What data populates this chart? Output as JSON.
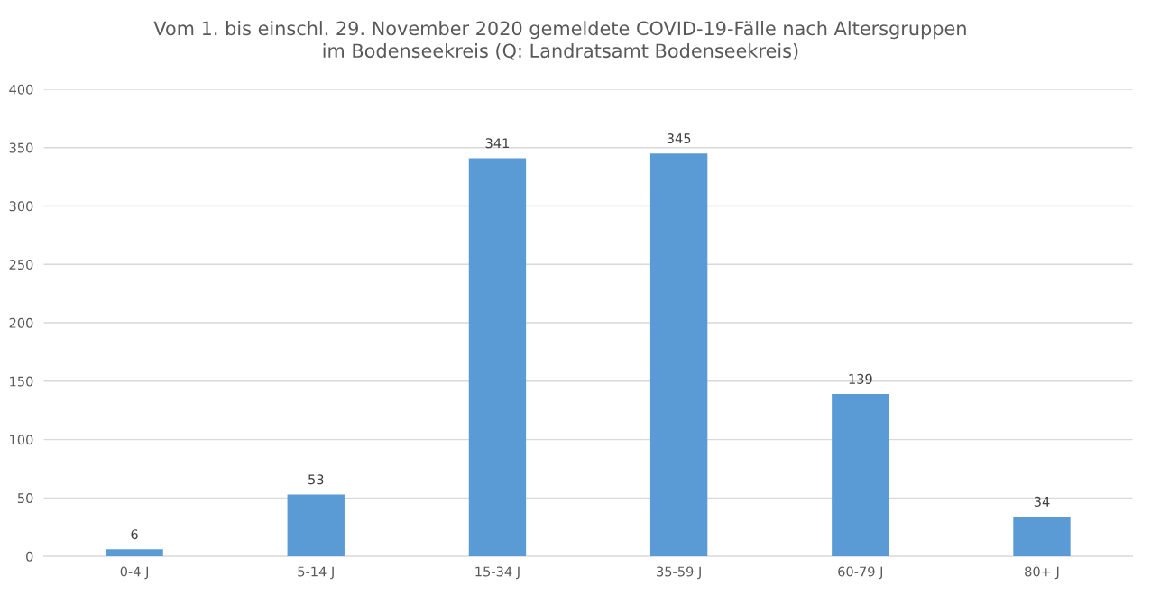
{
  "chart_data": {
    "type": "bar",
    "title": "Vom 1. bis einschl. 29. November 2020 gemeldete COVID-19-Fälle nach Altersgruppen\nim Bodenseekreis (Q: Landratsamt Bodenseekreis)",
    "categories": [
      "0-4 J",
      "5-14 J",
      "15-34 J",
      "35-59 J",
      "60-79 J",
      "80+ J"
    ],
    "values": [
      6,
      53,
      341,
      345,
      139,
      34
    ],
    "color": "#5b9bd5",
    "ylim": [
      0,
      400
    ],
    "yticks": [
      0,
      50,
      100,
      150,
      200,
      250,
      300,
      350,
      400
    ],
    "grid": "y",
    "data_labels": true,
    "legend": false
  }
}
